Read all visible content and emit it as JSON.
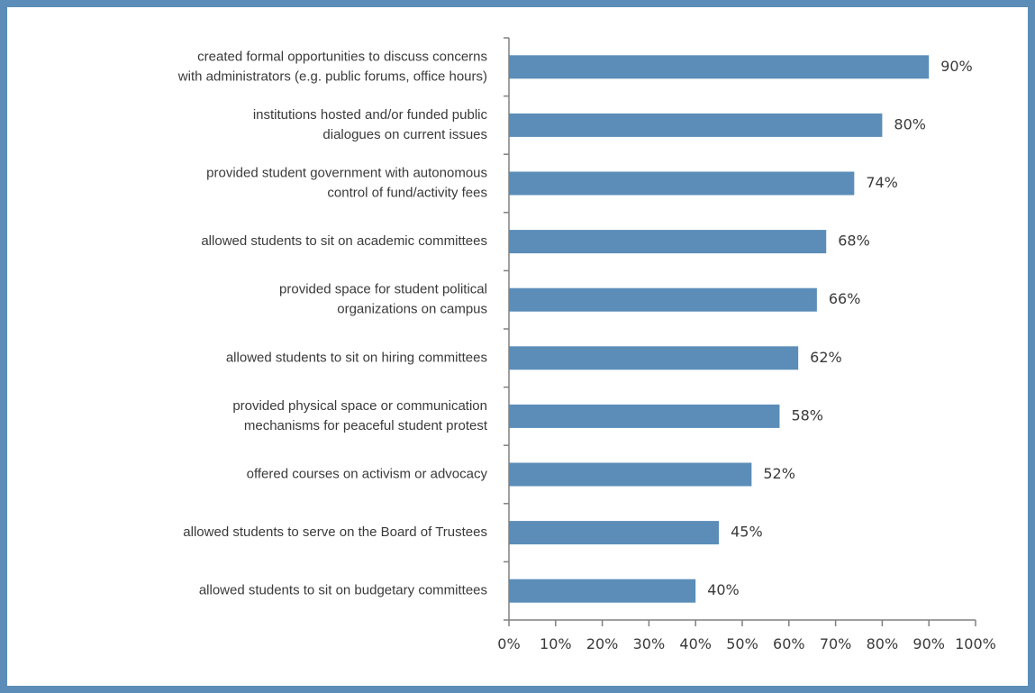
{
  "chart_data": {
    "type": "bar",
    "orientation": "horizontal",
    "categories": [
      [
        "created formal opportunities to discuss concerns",
        "with administrators (e.g. public forums, office hours)"
      ],
      [
        "institutions hosted and/or funded public",
        "dialogues on current issues"
      ],
      [
        "provided student government with autonomous",
        "control of fund/activity fees"
      ],
      [
        "allowed students to sit on academic committees"
      ],
      [
        "provided space for student political",
        "organizations on campus"
      ],
      [
        "allowed students to sit on hiring committees"
      ],
      [
        "provided physical space or communication",
        "mechanisms for peaceful student protest"
      ],
      [
        "offered courses on activism or advocacy"
      ],
      [
        "allowed students to serve on the Board of Trustees"
      ],
      [
        "allowed students to sit on budgetary committees"
      ]
    ],
    "values": [
      90,
      80,
      74,
      68,
      66,
      62,
      58,
      52,
      45,
      40
    ],
    "data_labels": [
      "90%",
      "80%",
      "74%",
      "68%",
      "66%",
      "62%",
      "58%",
      "52%",
      "45%",
      "40%"
    ],
    "x_ticks": [
      "0%",
      "10%",
      "20%",
      "30%",
      "40%",
      "50%",
      "60%",
      "70%",
      "80%",
      "90%",
      "100%"
    ],
    "xlim": [
      0,
      100
    ],
    "title": "",
    "xlabel": "",
    "ylabel": "",
    "grid": false,
    "legend": "none",
    "bar_color": "#5b8db8",
    "frame_color": "#5b8db8"
  }
}
